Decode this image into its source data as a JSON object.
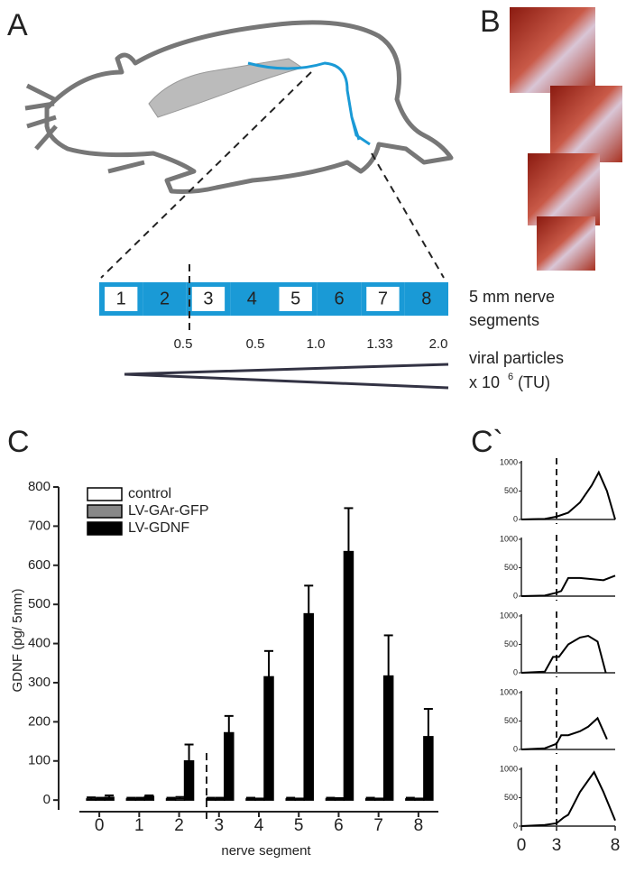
{
  "panels": {
    "a": "A",
    "b": "B",
    "c": "C",
    "c2": "C`"
  },
  "segments": {
    "labels": [
      "1",
      "2",
      "3",
      "4",
      "5",
      "6",
      "7",
      "8"
    ],
    "caption_1": "5 mm nerve",
    "caption_2": "segments",
    "doses": [
      "0.5",
      "0.5",
      "1.0",
      "1.33",
      "2.0"
    ],
    "dose_caption_1": "viral particles",
    "dose_caption_2": "x 10",
    "dose_caption_exp": "6",
    "dose_caption_3": "(TU)"
  },
  "chart_data": [
    {
      "type": "bar",
      "xlabel": "nerve segment",
      "ylabel": "GDNF (pg/ 5mm)",
      "categories": [
        "0",
        "1",
        "2",
        "3",
        "4",
        "5",
        "6",
        "7",
        "8"
      ],
      "ylim": [
        -25,
        800
      ],
      "yticks": [
        0,
        100,
        200,
        300,
        400,
        500,
        600,
        700,
        800
      ],
      "series": [
        {
          "name": "control",
          "color": "#ffffff",
          "values": [
            3,
            3,
            3,
            3,
            3,
            3,
            3,
            3,
            3
          ],
          "errors": [
            4,
            3,
            3,
            3,
            3,
            3,
            3,
            3,
            3
          ]
        },
        {
          "name": "LV-GAr-GFP",
          "color": "#888888",
          "values": [
            3,
            3,
            4,
            3,
            2,
            2,
            3,
            2,
            2
          ],
          "errors": [
            3,
            3,
            4,
            3,
            2,
            2,
            2,
            2,
            2
          ]
        },
        {
          "name": "LV-GDNF",
          "color": "#000000",
          "values": [
            7,
            9,
            100,
            172,
            315,
            476,
            635,
            317,
            162
          ],
          "errors": [
            5,
            3,
            42,
            43,
            66,
            72,
            111,
            104,
            71
          ]
        }
      ]
    },
    {
      "type": "line",
      "xlim": [
        0,
        8
      ],
      "ylim": [
        0,
        1000
      ],
      "yticks": [
        0,
        500,
        1000
      ],
      "vline": 3,
      "x": [
        0,
        1,
        2,
        3,
        4,
        5,
        6,
        6.6,
        7.3,
        8
      ],
      "values": [
        0,
        5,
        10,
        50,
        120,
        300,
        600,
        830,
        500,
        0
      ]
    },
    {
      "type": "line",
      "xlim": [
        0,
        8
      ],
      "ylim": [
        0,
        1000
      ],
      "yticks": [
        0,
        500,
        1000
      ],
      "vline": 3,
      "x": [
        0,
        2,
        3,
        3.4,
        4,
        5,
        7,
        8
      ],
      "values": [
        0,
        10,
        60,
        90,
        320,
        320,
        280,
        360
      ]
    },
    {
      "type": "line",
      "xlim": [
        0,
        8
      ],
      "ylim": [
        0,
        1000
      ],
      "yticks": [
        0,
        500,
        1000
      ],
      "vline": 3,
      "x": [
        0,
        2,
        2.7,
        3.2,
        4,
        5,
        5.7,
        6.5,
        7.2
      ],
      "values": [
        0,
        20,
        280,
        280,
        500,
        620,
        650,
        550,
        0
      ]
    },
    {
      "type": "line",
      "xlim": [
        0,
        8
      ],
      "ylim": [
        0,
        1000
      ],
      "yticks": [
        0,
        500,
        1000
      ],
      "vline": 3,
      "x": [
        0,
        2,
        3,
        3.4,
        4,
        5,
        5.7,
        6.5,
        7.3
      ],
      "values": [
        0,
        20,
        100,
        250,
        250,
        320,
        400,
        550,
        180
      ]
    },
    {
      "type": "line",
      "xlim": [
        0,
        8
      ],
      "ylim": [
        0,
        1000
      ],
      "yticks": [
        0,
        500,
        1000
      ],
      "vline": 3,
      "xticks": [
        0,
        3,
        8
      ],
      "x": [
        0,
        2,
        3,
        3.6,
        4,
        5,
        6.2,
        7,
        8
      ],
      "values": [
        0,
        20,
        50,
        150,
        200,
        600,
        950,
        600,
        100
      ]
    }
  ]
}
